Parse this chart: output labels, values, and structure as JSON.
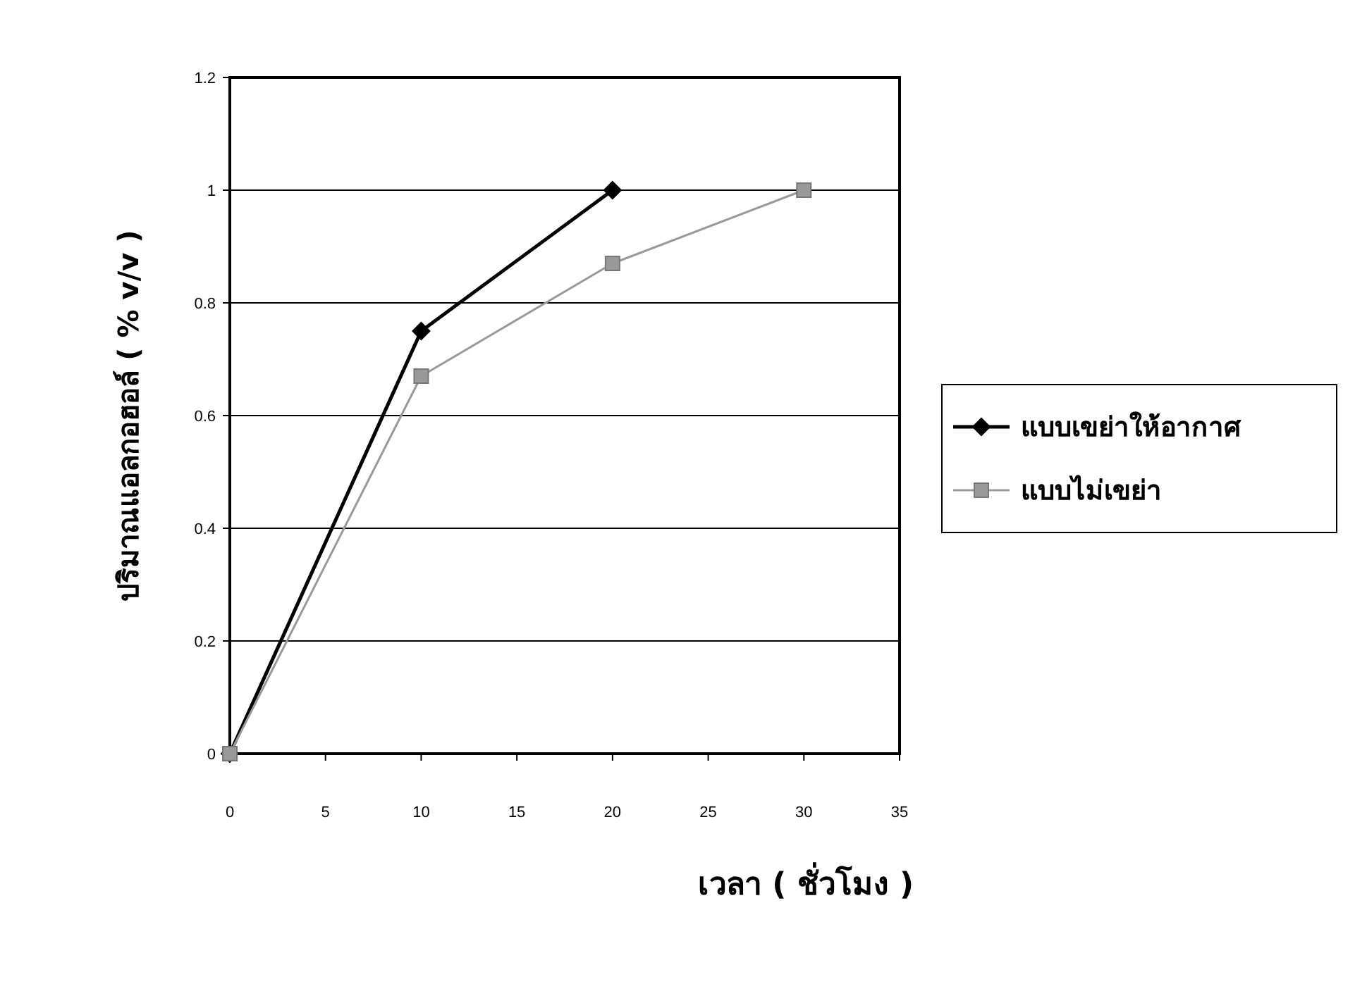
{
  "chart_data": {
    "type": "line",
    "xlabel": "เวลา ( ชั่วโมง )",
    "ylabel": "ปริมาณแอลกอฮอล์ ( % v/v )",
    "xlim": [
      0,
      35
    ],
    "xticks": [
      0,
      5,
      10,
      15,
      20,
      25,
      30,
      35
    ],
    "ylim": [
      0,
      1.2
    ],
    "yticks": [
      0,
      0.2,
      0.4,
      0.6,
      0.8,
      1,
      1.2
    ],
    "grid": "y",
    "legend": "right",
    "line_style": "solid",
    "series": [
      {
        "name": "แบบเขย่าให้อากาศ",
        "color": "#000000",
        "marker": "diamond",
        "x": [
          0,
          10,
          20
        ],
        "values": [
          0,
          0.75,
          1
        ]
      },
      {
        "name": "แบบไม่เขย่า",
        "color": "#999999",
        "marker": "square",
        "x": [
          0,
          10,
          20,
          30
        ],
        "values": [
          0,
          0.67,
          0.87,
          1
        ]
      }
    ]
  }
}
